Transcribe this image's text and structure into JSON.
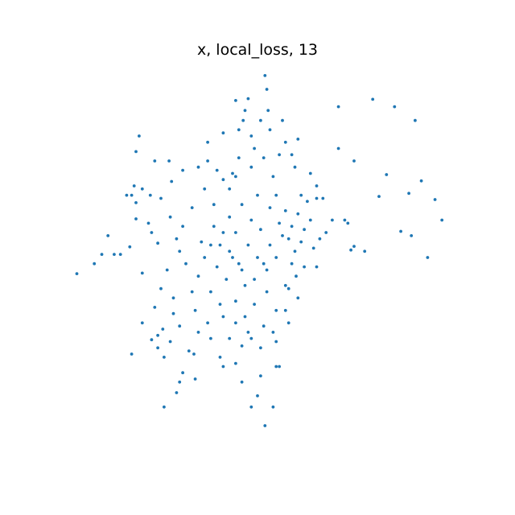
{
  "chart_data": {
    "type": "scatter",
    "title": "x, local_loss, 13",
    "xlabel": "",
    "ylabel": "",
    "axes_visible": false,
    "grid": false,
    "legend": "none",
    "color": "#1f77b4",
    "xlim": [
      -3.1,
      3.1
    ],
    "ylim": [
      -3.1,
      3.1
    ],
    "points": [
      [
        0.12,
        2.92
      ],
      [
        -0.35,
        2.52
      ],
      [
        -0.2,
        2.36
      ],
      [
        0.17,
        2.36
      ],
      [
        -0.23,
        2.2
      ],
      [
        1.3,
        2.42
      ],
      [
        1.85,
        2.54
      ],
      [
        2.2,
        2.42
      ],
      [
        2.53,
        2.2
      ],
      [
        -1.9,
        1.95
      ],
      [
        -1.65,
        1.55
      ],
      [
        -1.95,
        1.7
      ],
      [
        1.3,
        1.75
      ],
      [
        1.55,
        1.55
      ],
      [
        2.07,
        1.33
      ],
      [
        1.45,
        0.55
      ],
      [
        1.4,
        0.6
      ],
      [
        1.95,
        0.98
      ],
      [
        2.43,
        1.03
      ],
      [
        1.72,
        0.1
      ],
      [
        2.3,
        0.42
      ],
      [
        1.55,
        0.18
      ],
      [
        1.5,
        0.12
      ],
      [
        2.63,
        1.23
      ],
      [
        2.85,
        0.93
      ],
      [
        2.47,
        0.35
      ],
      [
        2.96,
        0.6
      ],
      [
        2.73,
        0.0
      ],
      [
        -2.9,
        -0.26
      ],
      [
        -2.4,
        0.35
      ],
      [
        -2.5,
        0.05
      ],
      [
        -2.62,
        -0.1
      ],
      [
        -2.3,
        0.05
      ],
      [
        -2.2,
        0.05
      ],
      [
        -2.05,
        0.17
      ],
      [
        -1.85,
        -0.25
      ],
      [
        -1.55,
        -0.5
      ],
      [
        -1.6,
        0.23
      ],
      [
        -1.7,
        0.4
      ],
      [
        -1.95,
        0.62
      ],
      [
        -1.95,
        0.88
      ],
      [
        -2.1,
        1.0
      ],
      [
        -2.02,
        1.0
      ],
      [
        -1.85,
        1.1
      ],
      [
        -1.98,
        1.15
      ],
      [
        -1.72,
        1.0
      ],
      [
        -1.42,
        1.55
      ],
      [
        -1.38,
        1.22
      ],
      [
        -1.4,
        0.65
      ],
      [
        -1.65,
        -0.8
      ],
      [
        -1.6,
        -1.25
      ],
      [
        -1.52,
        -1.15
      ],
      [
        -1.4,
        -1.35
      ],
      [
        -1.6,
        -1.45
      ],
      [
        -1.5,
        -1.6
      ],
      [
        -1.7,
        -1.32
      ],
      [
        -1.2,
        -1.85
      ],
      [
        -1.3,
        -2.17
      ],
      [
        -1.0,
        -1.95
      ],
      [
        -1.02,
        -1.55
      ],
      [
        -0.55,
        -1.75
      ],
      [
        -0.25,
        -1.42
      ],
      [
        -0.35,
        -1.7
      ],
      [
        -0.25,
        -2.0
      ],
      [
        0.0,
        -2.22
      ],
      [
        0.05,
        -1.9
      ],
      [
        -0.1,
        -2.4
      ],
      [
        0.25,
        -2.4
      ],
      [
        0.12,
        -2.7
      ],
      [
        0.3,
        -1.75
      ],
      [
        0.35,
        -1.75
      ],
      [
        0.3,
        -1.35
      ],
      [
        0.45,
        -0.85
      ],
      [
        0.45,
        -0.45
      ],
      [
        0.5,
        -0.5
      ],
      [
        0.62,
        -0.3
      ],
      [
        0.75,
        -0.15
      ],
      [
        0.95,
        -0.15
      ],
      [
        0.6,
        0.1
      ],
      [
        0.5,
        0.3
      ],
      [
        0.55,
        0.5
      ],
      [
        0.65,
        0.7
      ],
      [
        0.8,
        0.9
      ],
      [
        0.7,
        1.0
      ],
      [
        0.75,
        0.45
      ],
      [
        0.9,
        0.15
      ],
      [
        1.0,
        0.3
      ],
      [
        1.1,
        0.4
      ],
      [
        1.2,
        0.6
      ],
      [
        0.95,
        0.95
      ],
      [
        0.85,
        1.35
      ],
      [
        0.6,
        1.45
      ],
      [
        0.55,
        1.65
      ],
      [
        0.45,
        1.85
      ],
      [
        0.2,
        2.05
      ],
      [
        0.05,
        2.2
      ],
      [
        -0.1,
        1.95
      ],
      [
        -0.3,
        2.05
      ],
      [
        -0.55,
        2.0
      ],
      [
        -0.8,
        1.85
      ],
      [
        -0.95,
        1.45
      ],
      [
        -1.2,
        1.4
      ],
      [
        -0.8,
        1.55
      ],
      [
        -0.65,
        1.4
      ],
      [
        -0.45,
        1.1
      ],
      [
        -0.1,
        1.45
      ],
      [
        0.1,
        1.6
      ],
      [
        0.25,
        1.3
      ],
      [
        0.0,
        1.0
      ],
      [
        -0.25,
        0.85
      ],
      [
        -0.45,
        0.65
      ],
      [
        -0.7,
        0.5
      ],
      [
        -0.9,
        0.25
      ],
      [
        -0.6,
        0.2
      ],
      [
        -0.35,
        0.4
      ],
      [
        -0.15,
        0.2
      ],
      [
        0.05,
        0.45
      ],
      [
        0.2,
        0.2
      ],
      [
        0.3,
        0.0
      ],
      [
        0.15,
        -0.2
      ],
      [
        -0.05,
        -0.35
      ],
      [
        -0.25,
        -0.2
      ],
      [
        -0.5,
        -0.35
      ],
      [
        -0.75,
        -0.55
      ],
      [
        -0.95,
        -0.3
      ],
      [
        -1.15,
        -0.1
      ],
      [
        -1.0,
        -0.85
      ],
      [
        -0.8,
        -1.05
      ],
      [
        -0.55,
        -0.95
      ],
      [
        -0.35,
        -0.7
      ],
      [
        -0.2,
        -0.95
      ],
      [
        -0.05,
        -0.75
      ],
      [
        0.15,
        -0.55
      ],
      [
        0.3,
        -0.85
      ],
      [
        0.1,
        -1.1
      ],
      [
        -0.1,
        -1.3
      ],
      [
        -0.45,
        -1.3
      ],
      [
        -0.75,
        -1.3
      ],
      [
        -1.1,
        -1.5
      ],
      [
        -1.25,
        -1.1
      ],
      [
        -1.35,
        -0.65
      ],
      [
        -1.45,
        -0.2
      ],
      [
        -1.25,
        0.1
      ],
      [
        -1.2,
        0.5
      ],
      [
        -1.05,
        0.8
      ],
      [
        -0.85,
        1.1
      ],
      [
        -0.55,
        1.25
      ],
      [
        -0.3,
        1.6
      ],
      [
        -0.05,
        1.75
      ],
      [
        0.3,
        1.0
      ],
      [
        0.45,
        0.75
      ],
      [
        0.35,
        0.55
      ],
      [
        -0.65,
        -0.15
      ],
      [
        -0.85,
        0.0
      ],
      [
        -1.05,
        -0.55
      ],
      [
        0.55,
        -0.1
      ],
      [
        -0.45,
        0.1
      ],
      [
        -0.2,
        -0.45
      ],
      [
        0.0,
        0.0
      ],
      [
        0.2,
        0.8
      ],
      [
        -0.35,
        1.3
      ],
      [
        -0.7,
        0.85
      ],
      [
        -1.3,
        0.3
      ],
      [
        -0.95,
        -1.2
      ],
      [
        -0.6,
        -1.6
      ],
      [
        -0.35,
        -1.05
      ],
      [
        0.25,
        -1.2
      ],
      [
        0.5,
        -1.05
      ],
      [
        0.65,
        -0.65
      ],
      [
        0.85,
        0.6
      ],
      [
        1.05,
        0.95
      ],
      [
        0.95,
        1.15
      ],
      [
        0.4,
        2.2
      ],
      [
        0.65,
        1.9
      ],
      [
        -0.15,
        2.55
      ],
      [
        0.15,
        2.7
      ],
      [
        -0.4,
        1.35
      ],
      [
        -0.55,
        0.4
      ],
      [
        -0.1,
        0.6
      ],
      [
        0.1,
        -0.1
      ],
      [
        0.4,
        0.35
      ],
      [
        -0.3,
        -0.1
      ],
      [
        -0.75,
        0.2
      ],
      [
        -0.6,
        -0.75
      ],
      [
        -0.15,
        -1.2
      ],
      [
        0.05,
        -1.45
      ],
      [
        -0.4,
        0.0
      ],
      [
        0.7,
        0.25
      ],
      [
        0.35,
        1.65
      ],
      [
        -1.55,
        0.95
      ],
      [
        -1.75,
        0.55
      ],
      [
        -1.35,
        -0.9
      ],
      [
        -1.85,
        -1.05
      ],
      [
        -2.02,
        -1.55
      ],
      [
        -1.25,
        -2.0
      ],
      [
        -1.5,
        -2.4
      ]
    ]
  }
}
